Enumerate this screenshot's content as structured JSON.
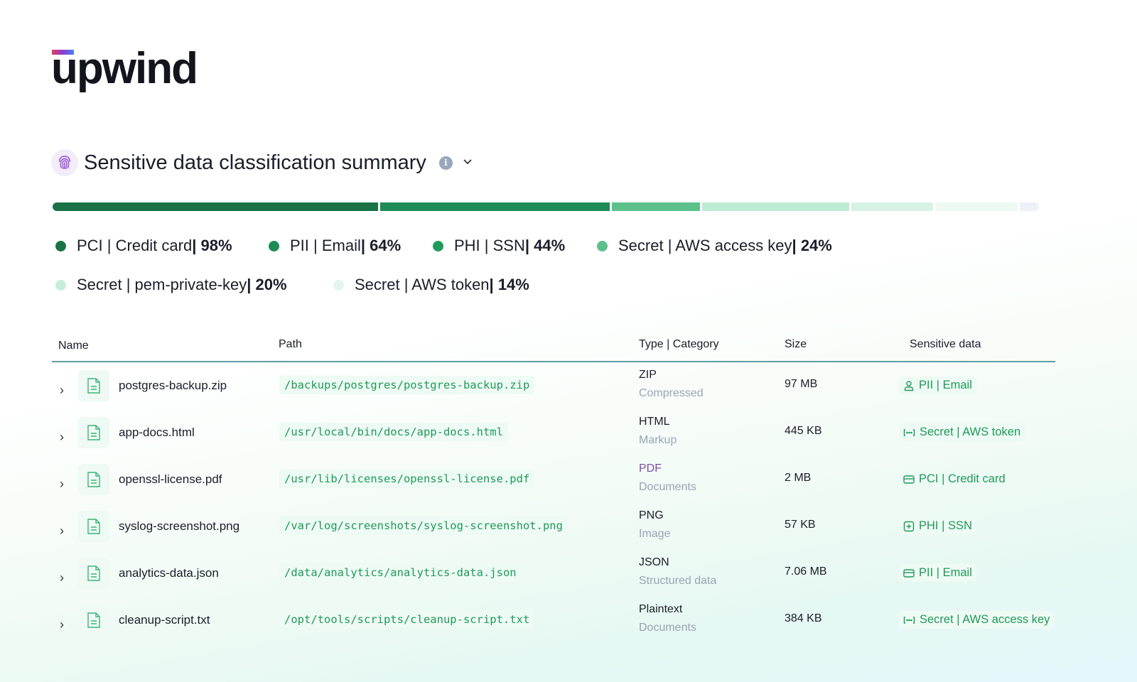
{
  "brand": {
    "name": "upwind"
  },
  "summary": {
    "title": "Sensitive data classification summary",
    "info_icon": "i",
    "segment_colors": [
      "#1a7246",
      "#1e8a55",
      "#5cc08c",
      "#bdebd4",
      "#d6f2e4",
      "#eef9f3",
      "#edf1f8"
    ],
    "legend": [
      {
        "label": "PCI | Credit card ",
        "value": "| 98%",
        "color": "#1a7246"
      },
      {
        "label": "PII | Email ",
        "value": "| 64%",
        "color": "#1e8a55"
      },
      {
        "label": "PHI | SSN ",
        "value": "| 44%",
        "color": "#1f9a5a"
      },
      {
        "label": "Secret | AWS access key ",
        "value": "| 24%",
        "color": "#5cc08c"
      },
      {
        "label": "Secret | pem-private-key ",
        "value": "| 20%",
        "color": "#c6eedb"
      },
      {
        "label": "Secret | AWS token ",
        "value": "| 14%",
        "color": "#e2f6ec"
      }
    ]
  },
  "table": {
    "headers": {
      "name": "Name",
      "path": "Path",
      "type": "Type | Category",
      "size": "Size",
      "sensitive": "Sensitive data"
    },
    "rows": [
      {
        "name": "postgres-backup.zip",
        "path": "/backups/postgres/postgres-backup.zip",
        "type": "ZIP",
        "category": "Compressed",
        "size": "97 MB",
        "sensitive": "PII | Email",
        "icon": "user"
      },
      {
        "name": "app-docs.html",
        "path": "/usr/local/bin/docs/app-docs.html",
        "type": "HTML",
        "category": "Markup",
        "size": "445 KB",
        "sensitive": "Secret | AWS token",
        "icon": "key"
      },
      {
        "name": "openssl-license.pdf",
        "path": "/usr/lib/licenses/openssl-license.pdf",
        "type": "PDF",
        "category": "Documents",
        "size": "2 MB",
        "sensitive": "PCI | Credit card",
        "icon": "card"
      },
      {
        "name": "syslog-screenshot.png",
        "path": "/var/log/screenshots/syslog-screenshot.png",
        "type": "PNG",
        "category": "Image",
        "size": "57 KB",
        "sensitive": "PHI | SSN",
        "icon": "plus"
      },
      {
        "name": "analytics-data.json",
        "path": "/data/analytics/analytics-data.json",
        "type": "JSON",
        "category": "Structured data",
        "size": "7.06 MB",
        "sensitive": "PII | Email",
        "icon": "card"
      },
      {
        "name": "cleanup-script.txt",
        "path": "/opt/tools/scripts/cleanup-script.txt",
        "type": "Plaintext",
        "category": "Documents",
        "size": "384 KB",
        "sensitive": "Secret | AWS access key",
        "icon": "key"
      }
    ]
  }
}
